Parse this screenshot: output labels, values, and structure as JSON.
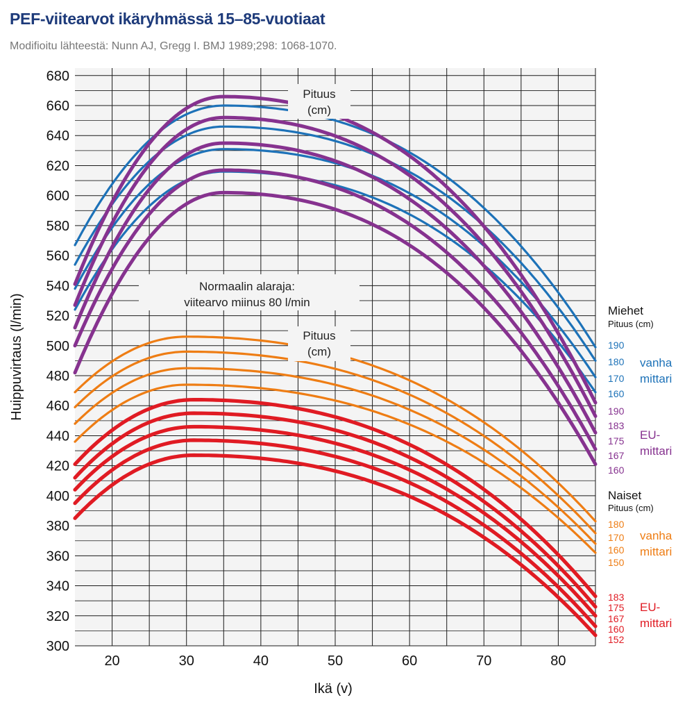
{
  "header": {
    "title": "PEF-viitearvot ikäryhmässä 15–85-vuotiaat",
    "subtitle": "Modifioitu lähteestä: Nunn AJ, Gregg I. BMJ 1989;298: 1068-1070."
  },
  "colors": {
    "men_old": "#1d72b8",
    "men_eu": "#86328f",
    "women_old": "#ee7d14",
    "women_eu": "#e01b23",
    "title": "#1d3a7a",
    "plot_bg": "#f4f4f4"
  },
  "chart_data": {
    "type": "line",
    "title": "PEF-viitearvot ikäryhmässä 15–85-vuotiaat",
    "xlabel": "Ikä (v)",
    "ylabel": "Huippuvirtaus (l/min)",
    "xlim": [
      15,
      85
    ],
    "ylim": [
      300,
      685
    ],
    "grid": true,
    "x_ticks": [
      20,
      30,
      40,
      50,
      60,
      70,
      80
    ],
    "y_ticks": [
      300,
      320,
      340,
      360,
      380,
      400,
      420,
      440,
      460,
      480,
      500,
      520,
      540,
      560,
      580,
      600,
      620,
      640,
      660,
      680
    ],
    "groups": [
      {
        "id": "men_old",
        "heading": "Miehet",
        "subheading": "Pituus (cm)",
        "meter": "vanha mittari",
        "color": "#1d72b8",
        "series": [
          {
            "name": "190",
            "values": [
              [
                15,
                567
              ],
              [
                35,
                660
              ],
              [
                85,
                499
              ]
            ]
          },
          {
            "name": "180",
            "values": [
              [
                15,
                554
              ],
              [
                35,
                646
              ],
              [
                85,
                490
              ]
            ]
          },
          {
            "name": "170",
            "values": [
              [
                15,
                538
              ],
              [
                35,
                631
              ],
              [
                85,
                479
              ]
            ]
          },
          {
            "name": "160",
            "values": [
              [
                15,
                524
              ],
              [
                35,
                616
              ],
              [
                85,
                469
              ]
            ]
          }
        ]
      },
      {
        "id": "men_eu",
        "heading": "",
        "subheading": "",
        "meter": "EU-mittari",
        "color": "#86328f",
        "series": [
          {
            "name": "190",
            "values": [
              [
                15,
                541
              ],
              [
                35,
                666
              ],
              [
                85,
                462
              ]
            ]
          },
          {
            "name": "183",
            "values": [
              [
                15,
                527
              ],
              [
                35,
                652
              ],
              [
                85,
                453
              ]
            ]
          },
          {
            "name": "175",
            "values": [
              [
                15,
                512
              ],
              [
                35,
                635
              ],
              [
                85,
                442
              ]
            ]
          },
          {
            "name": "167",
            "values": [
              [
                15,
                500
              ],
              [
                35,
                617
              ],
              [
                85,
                431
              ]
            ]
          },
          {
            "name": "160",
            "values": [
              [
                15,
                482
              ],
              [
                35,
                602
              ],
              [
                85,
                421
              ]
            ]
          }
        ]
      },
      {
        "id": "women_old",
        "heading": "Naiset",
        "subheading": "Pituus (cm)",
        "meter": "vanha mittari",
        "color": "#ee7d14",
        "series": [
          {
            "name": "180",
            "values": [
              [
                15,
                469
              ],
              [
                30,
                506
              ],
              [
                85,
                383
              ]
            ]
          },
          {
            "name": "170",
            "values": [
              [
                15,
                459
              ],
              [
                30,
                496
              ],
              [
                85,
                375
              ]
            ]
          },
          {
            "name": "160",
            "values": [
              [
                15,
                448
              ],
              [
                30,
                485
              ],
              [
                85,
                368
              ]
            ]
          },
          {
            "name": "150",
            "values": [
              [
                15,
                436
              ],
              [
                30,
                474
              ],
              [
                85,
                362
              ]
            ]
          }
        ]
      },
      {
        "id": "women_eu",
        "heading": "",
        "subheading": "",
        "meter": "EU-mittari",
        "color": "#e01b23",
        "series": [
          {
            "name": "183",
            "values": [
              [
                15,
                421
              ],
              [
                31,
                464
              ],
              [
                85,
                333
              ]
            ]
          },
          {
            "name": "175",
            "values": [
              [
                15,
                412
              ],
              [
                31,
                455
              ],
              [
                85,
                326
              ]
            ]
          },
          {
            "name": "167",
            "values": [
              [
                15,
                404
              ],
              [
                31,
                446
              ],
              [
                85,
                320
              ]
            ]
          },
          {
            "name": "160",
            "values": [
              [
                15,
                395
              ],
              [
                31,
                437
              ],
              [
                85,
                313
              ]
            ]
          },
          {
            "name": "152",
            "values": [
              [
                15,
                385
              ],
              [
                31,
                427
              ],
              [
                85,
                307
              ]
            ]
          }
        ]
      }
    ],
    "annotations": {
      "pituus_top": {
        "line1": "Pituus",
        "line2": "(cm)"
      },
      "normal_limit": {
        "line1": "Normaalin alaraja:",
        "line2": "viitearvo miinus 80 l/min"
      },
      "pituus_mid": {
        "line1": "Pituus",
        "line2": "(cm)"
      }
    }
  }
}
